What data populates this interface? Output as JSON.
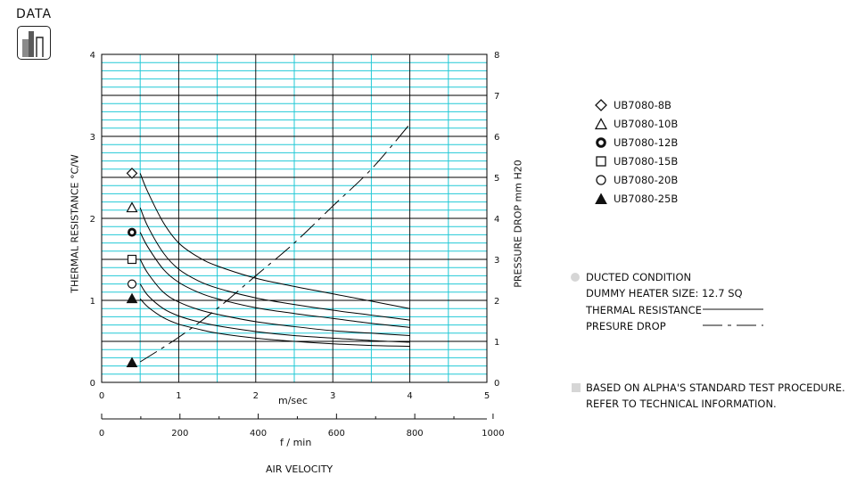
{
  "section": {
    "title": "DATA",
    "icon": "bar-chart-icon"
  },
  "chart_data": {
    "type": "line",
    "y_left_label": "THERMAL RESISTANCE  °C/W",
    "y_right_label": "PRESSURE DROP  mm H20",
    "x_label_top": "m/sec",
    "x_label_bottom": "f / min",
    "x_title": "AIR VELOCITY",
    "x_ms_ticks": [
      "0",
      "1",
      "2",
      "3",
      "4",
      "5"
    ],
    "x_fpm_ticks": [
      "0",
      "200",
      "400",
      "600",
      "800",
      "1000"
    ],
    "y_left_ticks": [
      "0",
      "1",
      "2",
      "3",
      "4"
    ],
    "y_right_ticks": [
      "0",
      "1",
      "2",
      "3",
      "4",
      "5",
      "6",
      "7",
      "8"
    ],
    "xlim": [
      0,
      5
    ],
    "ylim_left": [
      0,
      4
    ],
    "ylim_right": [
      0,
      8
    ],
    "grid": true,
    "series": [
      {
        "name": "UB7080-8B",
        "marker": "diamond-open",
        "start_value": 2.55,
        "x": [
          0.5,
          0.6,
          0.8,
          1.0,
          1.25,
          1.5,
          2.0,
          2.5,
          3.0,
          3.5,
          4.0
        ],
        "y": [
          2.55,
          2.32,
          1.95,
          1.7,
          1.53,
          1.42,
          1.27,
          1.17,
          1.08,
          0.99,
          0.9
        ]
      },
      {
        "name": "UB7080-10B",
        "marker": "triangle-open",
        "start_value": 2.13,
        "x": [
          0.5,
          0.6,
          0.8,
          1.0,
          1.25,
          1.5,
          2.0,
          2.5,
          3.0,
          3.5,
          4.0
        ],
        "y": [
          2.13,
          1.9,
          1.58,
          1.38,
          1.24,
          1.15,
          1.03,
          0.95,
          0.88,
          0.82,
          0.76
        ]
      },
      {
        "name": "UB7080-12B",
        "marker": "circle-bold",
        "start_value": 1.83,
        "x": [
          0.5,
          0.6,
          0.8,
          1.0,
          1.25,
          1.5,
          2.0,
          2.5,
          3.0,
          3.5,
          4.0
        ],
        "y": [
          1.83,
          1.65,
          1.38,
          1.22,
          1.1,
          1.02,
          0.91,
          0.84,
          0.78,
          0.72,
          0.67
        ]
      },
      {
        "name": "UB7080-15B",
        "marker": "square-open",
        "start_value": 1.5,
        "x": [
          0.5,
          0.6,
          0.8,
          1.0,
          1.25,
          1.5,
          2.0,
          2.5,
          3.0,
          3.5,
          4.0
        ],
        "y": [
          1.5,
          1.33,
          1.1,
          0.98,
          0.89,
          0.83,
          0.74,
          0.68,
          0.63,
          0.6,
          0.57
        ]
      },
      {
        "name": "UB7080-20B",
        "marker": "circle-open",
        "start_value": 1.2,
        "x": [
          0.5,
          0.6,
          0.8,
          1.0,
          1.25,
          1.5,
          2.0,
          2.5,
          3.0,
          3.5,
          4.0
        ],
        "y": [
          1.2,
          1.06,
          0.9,
          0.81,
          0.74,
          0.69,
          0.62,
          0.57,
          0.54,
          0.51,
          0.49
        ]
      },
      {
        "name": "UB7080-25B",
        "marker": "triangle-filled",
        "start_value": 1.02,
        "x": [
          0.5,
          0.6,
          0.8,
          1.0,
          1.25,
          1.5,
          2.0,
          2.5,
          3.0,
          3.5,
          4.0
        ],
        "y": [
          1.02,
          0.92,
          0.79,
          0.71,
          0.65,
          0.6,
          0.54,
          0.5,
          0.47,
          0.45,
          0.44
        ]
      }
    ],
    "pressure_drop": {
      "axis": "right",
      "marker": "triangle-filled",
      "start_value": 0.5,
      "x": [
        0.5,
        1.0,
        1.5,
        2.0,
        2.5,
        3.0,
        3.5,
        4.0
      ],
      "y": [
        0.5,
        1.1,
        1.8,
        2.6,
        3.4,
        4.3,
        5.2,
        6.3
      ]
    }
  },
  "legend": {
    "items": [
      {
        "label": "UB7080-8B",
        "marker": "diamond-open"
      },
      {
        "label": "UB7080-10B",
        "marker": "triangle-open"
      },
      {
        "label": "UB7080-12B",
        "marker": "circle-bold"
      },
      {
        "label": "UB7080-15B",
        "marker": "square-open"
      },
      {
        "label": "UB7080-20B",
        "marker": "circle-open"
      },
      {
        "label": "UB7080-25B",
        "marker": "triangle-filled"
      }
    ]
  },
  "notes": {
    "condition": "DUCTED CONDITION",
    "heater": "DUMMY HEATER SIZE: 12.7 SQ",
    "thermal_resistance": "THERMAL RESISTANCE",
    "pressure_drop": "PRESURE DROP",
    "procedure_line1": "BASED ON ALPHA'S STANDARD TEST PROCEDURE.",
    "procedure_line2": "REFER TO TECHNICAL INFORMATION."
  },
  "colors": {
    "grid_minor": "#22c8d6",
    "grid_major": "#000000",
    "curve": "#000000",
    "bullet": "#d6d6d6"
  }
}
